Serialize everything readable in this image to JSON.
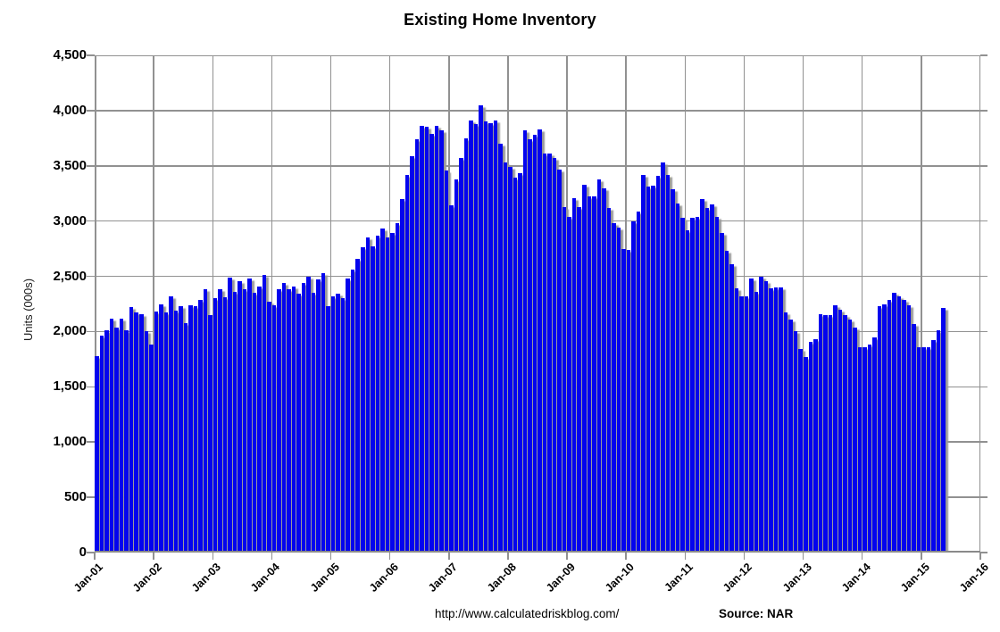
{
  "title": "Existing Home Inventory",
  "y_axis": {
    "label": "Units (000s)",
    "tick_labels": [
      "0",
      "500",
      "1,000",
      "1,500",
      "2,000",
      "2,500",
      "3,000",
      "3,500",
      "4,000",
      "4,500"
    ],
    "tick_values": [
      0,
      500,
      1000,
      1500,
      2000,
      2500,
      3000,
      3500,
      4000,
      4500
    ],
    "max": 4500
  },
  "x_axis": {
    "tick_labels": [
      "Jan-01",
      "Jan-02",
      "Jan-03",
      "Jan-04",
      "Jan-05",
      "Jan-06",
      "Jan-07",
      "Jan-08",
      "Jan-09",
      "Jan-10",
      "Jan-11",
      "Jan-12",
      "Jan-13",
      "Jan-14",
      "Jan-15",
      "Jan-16"
    ]
  },
  "footer": {
    "url": "http://www.calculatedriskblog.com/",
    "source": "Source: NAR"
  },
  "colors": {
    "bar": "#0404ee",
    "bar_shadow": "#999999",
    "grid": "#919191",
    "text": "#000000",
    "background": "#ffffff"
  },
  "chart_data": {
    "type": "bar",
    "title": "Existing Home Inventory",
    "xlabel": "",
    "ylabel": "Units (000s)",
    "ylim": [
      0,
      4500
    ],
    "y_gridline_step": 500,
    "grid": "on",
    "frequency": "monthly",
    "first_month": "Jan-2001",
    "last_month": "May-2015",
    "x_axis_span_months": 180,
    "x_tick_labels": [
      "Jan-01",
      "Jan-02",
      "Jan-03",
      "Jan-04",
      "Jan-05",
      "Jan-06",
      "Jan-07",
      "Jan-08",
      "Jan-09",
      "Jan-10",
      "Jan-11",
      "Jan-12",
      "Jan-13",
      "Jan-14",
      "Jan-15",
      "Jan-16"
    ],
    "units": "thousands of homes",
    "values_by_year": {
      "2001": [
        1780,
        1960,
        2010,
        2120,
        2040,
        2120,
        2010,
        2220,
        2170,
        2160,
        2000,
        1880
      ],
      "2002": [
        2180,
        2250,
        2170,
        2320,
        2190,
        2230,
        2080,
        2240,
        2230,
        2290,
        2380,
        2150
      ],
      "2003": [
        2300,
        2380,
        2310,
        2490,
        2360,
        2460,
        2380,
        2480,
        2350,
        2410,
        2510,
        2270
      ],
      "2004": [
        2240,
        2380,
        2440,
        2380,
        2410,
        2340,
        2440,
        2500,
        2350,
        2470,
        2530,
        2230
      ],
      "2005": [
        2320,
        2340,
        2300,
        2480,
        2560,
        2660,
        2760,
        2850,
        2770,
        2870,
        2930,
        2850
      ],
      "2006": [
        2890,
        2980,
        3200,
        3420,
        3590,
        3740,
        3860,
        3850,
        3790,
        3860,
        3820,
        3460
      ],
      "2007": [
        3140,
        3380,
        3570,
        3750,
        3910,
        3880,
        4050,
        3900,
        3890,
        3910,
        3700,
        3530
      ],
      "2008": [
        3490,
        3390,
        3430,
        3820,
        3740,
        3780,
        3830,
        3610,
        3610,
        3570,
        3470,
        3130
      ],
      "2009": [
        3040,
        3210,
        3130,
        3330,
        3220,
        3220,
        3380,
        3300,
        3120,
        2980,
        2940,
        2750
      ],
      "2010": [
        2740,
        3000,
        3090,
        3420,
        3310,
        3320,
        3410,
        3530,
        3420,
        3290,
        3160,
        3030
      ],
      "2011": [
        2920,
        3030,
        3040,
        3200,
        3120,
        3150,
        3040,
        2890,
        2730,
        2610,
        2390,
        2320
      ],
      "2012": [
        2320,
        2480,
        2360,
        2500,
        2460,
        2390,
        2400,
        2400,
        2170,
        2110,
        2000,
        1840
      ],
      "2013": [
        1770,
        1910,
        1930,
        2160,
        2150,
        2150,
        2240,
        2200,
        2150,
        2110,
        2040,
        1860
      ],
      "2014": [
        1860,
        1880,
        1950,
        2230,
        2250,
        2290,
        2350,
        2320,
        2290,
        2240,
        2070,
        1860
      ],
      "2015": [
        1860,
        1860,
        1920,
        2010,
        2210
      ]
    }
  }
}
